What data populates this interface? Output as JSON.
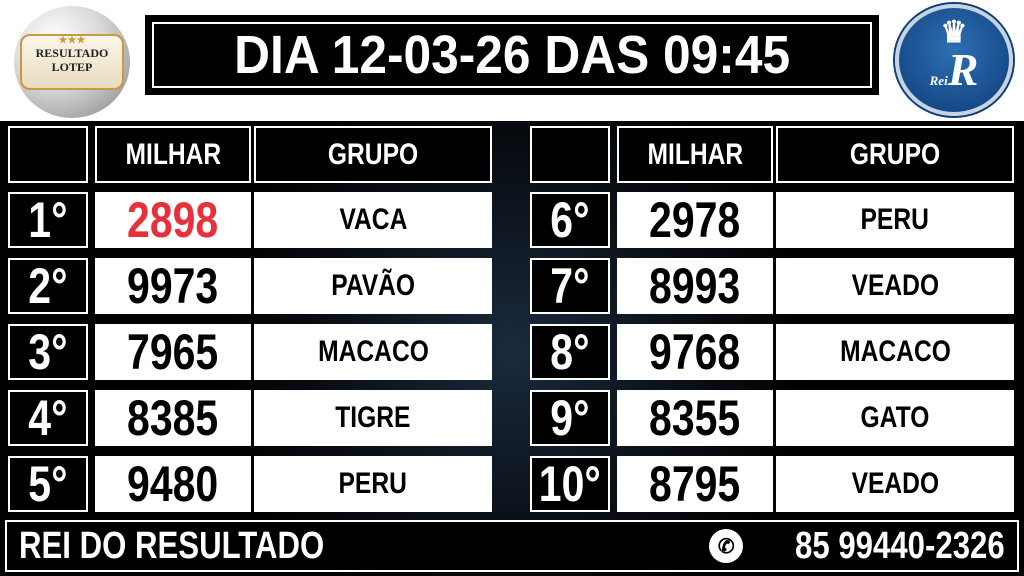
{
  "logo_left": {
    "text_line1": "RESULTADO",
    "text_line2": "LOTEP",
    "stars": "★★★"
  },
  "logo_right": {
    "text_small": "Rei",
    "text_big": "R"
  },
  "title": "DIA 12-03-26  DAS 09:45",
  "headers": {
    "milhar": "MILHAR",
    "grupo": "GRUPO"
  },
  "rows": [
    {
      "rank": "1°",
      "milhar": "2898",
      "grupo": "VACA",
      "highlight": true
    },
    {
      "rank": "2°",
      "milhar": "9973",
      "grupo": "PAVÃO"
    },
    {
      "rank": "3°",
      "milhar": "7965",
      "grupo": "MACACO"
    },
    {
      "rank": "4°",
      "milhar": "8385",
      "grupo": "TIGRE"
    },
    {
      "rank": "5°",
      "milhar": "9480",
      "grupo": "PERU"
    },
    {
      "rank": "6°",
      "milhar": "2978",
      "grupo": "PERU"
    },
    {
      "rank": "7°",
      "milhar": "8993",
      "grupo": "VEADO"
    },
    {
      "rank": "8°",
      "milhar": "9768",
      "grupo": "MACACO"
    },
    {
      "rank": "9°",
      "milhar": "8355",
      "grupo": "GATO"
    },
    {
      "rank": "10°",
      "milhar": "8795",
      "grupo": "VEADO"
    }
  ],
  "colors": {
    "highlight": "#e8303a",
    "background": "#000000"
  },
  "footer": {
    "brand": "REI DO RESULTADO",
    "phone_icon": "whatsapp-icon",
    "phone": "85 99440-2326"
  }
}
